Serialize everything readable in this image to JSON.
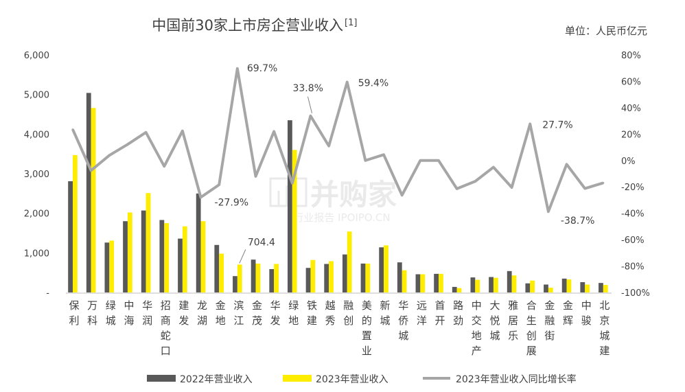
{
  "chart_data": {
    "type": "bar",
    "title": "中国前30家上市房企营业收入",
    "title_note": "[1]",
    "unit_label": "单位：人民币亿元",
    "categories": [
      "保利",
      "万科",
      "绿城",
      "中海",
      "华润",
      "招商蛇口",
      "建发",
      "龙湖",
      "金地",
      "滨江",
      "金茂",
      "华发",
      "绿地",
      "铁建",
      "越秀",
      "融创",
      "美的置业",
      "新城",
      "华侨城",
      "远洋",
      "首开",
      "路劲",
      "中交地产",
      "大悦城",
      "雅居乐",
      "合生创展",
      "金融街",
      "金辉",
      "中骏",
      "北京城建"
    ],
    "series": [
      {
        "name": "2022年营业收入",
        "kind": "bar",
        "axis": "left",
        "color": "#808080",
        "values": [
          2810,
          5040,
          1260,
          1800,
          2070,
          1830,
          1360,
          2500,
          1200,
          413,
          830,
          590,
          4350,
          620,
          720,
          960,
          730,
          1140,
          760,
          460,
          470,
          140,
          380,
          390,
          540,
          230,
          200,
          350,
          260,
          240
        ]
      },
      {
        "name": "2023年营业收入",
        "kind": "bar",
        "axis": "left",
        "color": "#FFED00",
        "values": [
          3470,
          4660,
          1310,
          2020,
          2510,
          1750,
          1670,
          1800,
          980,
          704.4,
          730,
          720,
          3600,
          820,
          790,
          1540,
          730,
          1190,
          560,
          460,
          470,
          110,
          320,
          370,
          430,
          300,
          120,
          330,
          200,
          190
        ]
      },
      {
        "name": "2023年营业收入同比增长率",
        "kind": "line",
        "axis": "right",
        "color": "#A6A6A6",
        "values": [
          23.5,
          -7.6,
          3.9,
          12.2,
          21.3,
          -4.4,
          22.4,
          -27.9,
          -18.4,
          69.7,
          -12.0,
          22.0,
          -17.2,
          33.8,
          11.0,
          59.4,
          0.0,
          4.4,
          -26.3,
          0.0,
          0.0,
          -21.4,
          -15.8,
          -5.1,
          -20.4,
          27.7,
          -38.7,
          -2.9,
          -21.2,
          -17.0
        ]
      }
    ],
    "left_axis": {
      "ylim": [
        0,
        6000
      ],
      "ticks": [
        "-",
        "1,000",
        "2,000",
        "3,000",
        "4,000",
        "5,000",
        "6,000"
      ]
    },
    "right_axis": {
      "ylim": [
        -100,
        80
      ],
      "ticks": [
        "-100%",
        "-80%",
        "-60%",
        "-40%",
        "-20%",
        "0%",
        "20%",
        "40%",
        "60%",
        "80%"
      ]
    },
    "annotations": [
      "69.7%",
      "33.8%",
      "59.4%",
      "-27.9%",
      "704.4",
      "27.7%",
      "-38.7%"
    ],
    "grid": false,
    "legend_position": "bottom"
  },
  "watermark": {
    "brand": "并购家",
    "tagline": "行业报告 IPOIPO.CN"
  },
  "colors": {
    "text": "#404040",
    "axis": "#BFBFBF"
  }
}
